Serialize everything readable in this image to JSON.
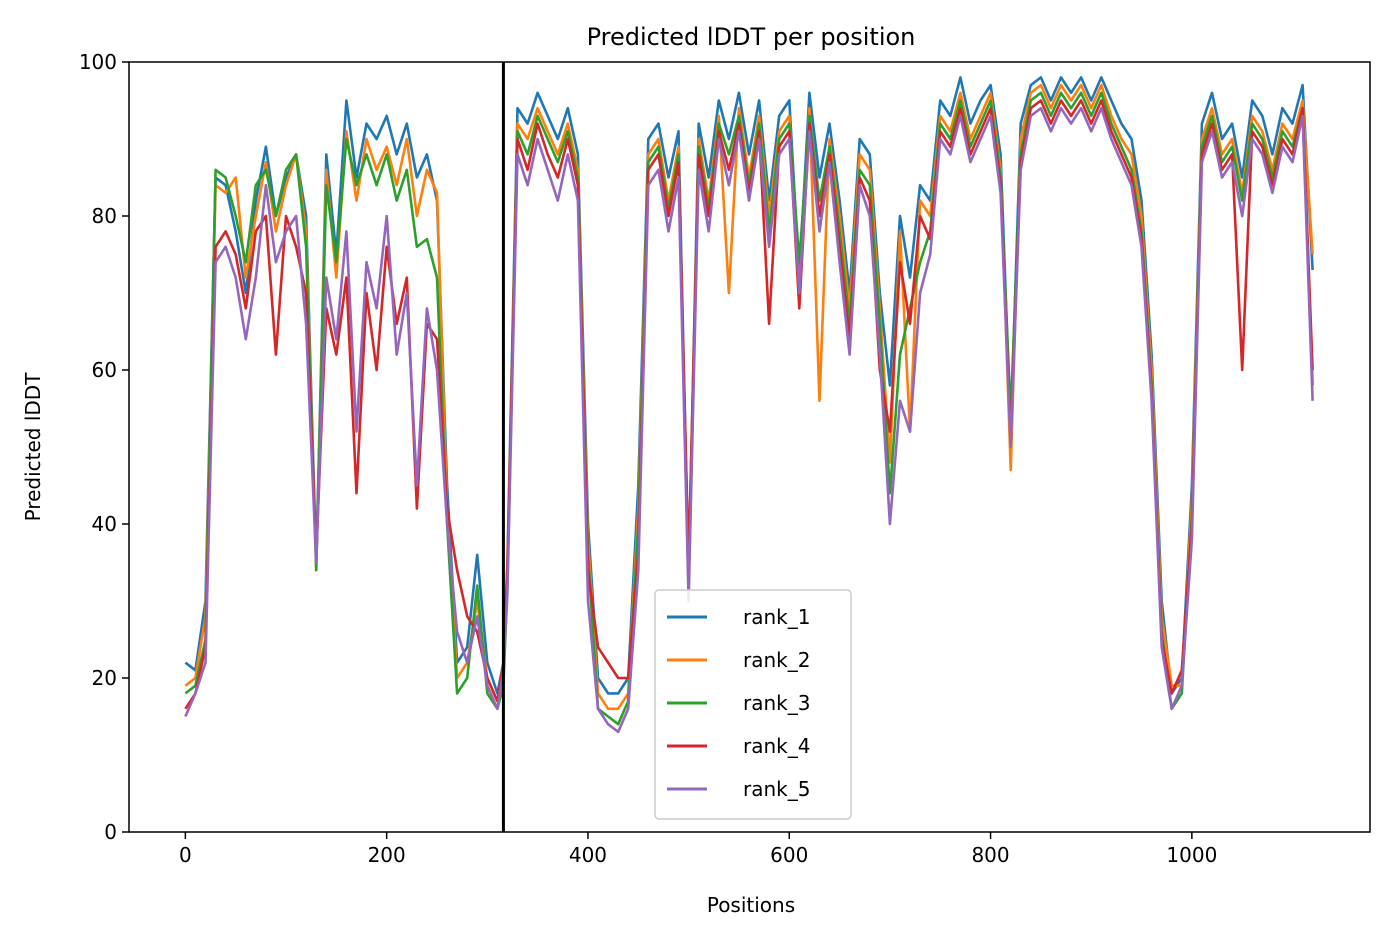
{
  "chart_data": {
    "type": "line",
    "title": "Predicted lDDT per position",
    "xlabel": "Positions",
    "ylabel": "Predicted lDDT",
    "xlim": [
      -56,
      1177
    ],
    "ylim": [
      0,
      100
    ],
    "xticks": [
      0,
      200,
      400,
      600,
      800,
      1000
    ],
    "yticks": [
      0,
      20,
      40,
      60,
      80,
      100
    ],
    "grid": false,
    "legend_position": "lower-center",
    "vertical_line_x": 316,
    "colors": [
      "#1f77b4",
      "#ff7f0e",
      "#2ca02c",
      "#d62728",
      "#9467bd"
    ],
    "series": [
      {
        "name": "rank_1",
        "x": [
          0,
          10,
          20,
          30,
          40,
          50,
          60,
          70,
          80,
          90,
          100,
          110,
          120,
          130,
          140,
          150,
          160,
          170,
          180,
          190,
          200,
          210,
          220,
          230,
          240,
          250,
          260,
          270,
          280,
          290,
          300,
          310,
          316,
          320,
          330,
          340,
          350,
          360,
          370,
          380,
          390,
          400,
          410,
          420,
          430,
          440,
          450,
          460,
          470,
          480,
          490,
          500,
          510,
          520,
          530,
          540,
          550,
          560,
          570,
          580,
          590,
          600,
          610,
          620,
          630,
          640,
          650,
          660,
          670,
          680,
          690,
          700,
          710,
          720,
          730,
          740,
          750,
          760,
          770,
          780,
          790,
          800,
          810,
          820,
          830,
          840,
          850,
          860,
          870,
          880,
          890,
          900,
          910,
          920,
          930,
          940,
          950,
          960,
          970,
          980,
          990,
          1000,
          1010,
          1020,
          1030,
          1040,
          1050,
          1060,
          1070,
          1080,
          1090,
          1100,
          1110,
          1120
        ],
        "values": [
          22,
          21,
          30,
          85,
          84,
          78,
          70,
          82,
          89,
          80,
          85,
          88,
          80,
          35,
          88,
          75,
          95,
          85,
          92,
          90,
          93,
          88,
          92,
          85,
          88,
          82,
          45,
          22,
          24,
          36,
          22,
          18,
          22,
          35,
          94,
          92,
          96,
          93,
          90,
          94,
          88,
          40,
          20,
          18,
          18,
          20,
          45,
          90,
          92,
          85,
          91,
          33,
          92,
          85,
          95,
          90,
          96,
          88,
          95,
          82,
          93,
          95,
          72,
          96,
          85,
          92,
          82,
          70,
          90,
          88,
          70,
          58,
          80,
          72,
          84,
          82,
          95,
          93,
          98,
          92,
          95,
          97,
          88,
          52,
          92,
          97,
          98,
          95,
          98,
          96,
          98,
          95,
          98,
          95,
          92,
          90,
          82,
          62,
          30,
          18,
          20,
          45,
          92,
          96,
          90,
          92,
          85,
          95,
          93,
          88,
          94,
          92,
          97,
          73
        ]
      },
      {
        "name": "rank_2",
        "x": [
          0,
          10,
          20,
          30,
          40,
          50,
          60,
          70,
          80,
          90,
          100,
          110,
          120,
          130,
          140,
          150,
          160,
          170,
          180,
          190,
          200,
          210,
          220,
          230,
          240,
          250,
          260,
          270,
          280,
          290,
          300,
          310,
          316,
          320,
          330,
          340,
          350,
          360,
          370,
          380,
          390,
          400,
          410,
          420,
          430,
          440,
          450,
          460,
          470,
          480,
          490,
          500,
          510,
          520,
          530,
          540,
          550,
          560,
          570,
          580,
          590,
          600,
          610,
          620,
          630,
          640,
          650,
          660,
          670,
          680,
          690,
          700,
          710,
          720,
          730,
          740,
          750,
          760,
          770,
          780,
          790,
          800,
          810,
          820,
          830,
          840,
          850,
          860,
          870,
          880,
          890,
          900,
          910,
          920,
          930,
          940,
          950,
          960,
          970,
          980,
          990,
          1000,
          1010,
          1020,
          1030,
          1040,
          1050,
          1060,
          1070,
          1080,
          1090,
          1100,
          1110,
          1120
        ],
        "values": [
          19,
          20,
          28,
          84,
          83,
          85,
          72,
          80,
          87,
          78,
          84,
          88,
          78,
          34,
          86,
          72,
          91,
          82,
          90,
          86,
          89,
          84,
          90,
          80,
          86,
          83,
          42,
          20,
          22,
          30,
          20,
          17,
          20,
          33,
          92,
          90,
          94,
          91,
          88,
          92,
          86,
          38,
          18,
          16,
          16,
          18,
          42,
          88,
          90,
          82,
          89,
          32,
          90,
          82,
          93,
          70,
          94,
          85,
          93,
          80,
          91,
          93,
          70,
          94,
          56,
          90,
          80,
          68,
          88,
          86,
          68,
          48,
          78,
          52,
          82,
          80,
          93,
          91,
          96,
          90,
          93,
          96,
          86,
          47,
          90,
          96,
          97,
          94,
          97,
          95,
          97,
          94,
          97,
          93,
          90,
          88,
          80,
          60,
          28,
          19,
          19,
          43,
          90,
          94,
          88,
          90,
          83,
          93,
          91,
          86,
          92,
          90,
          95,
          75
        ]
      },
      {
        "name": "rank_3",
        "x": [
          0,
          10,
          20,
          30,
          40,
          50,
          60,
          70,
          80,
          90,
          100,
          110,
          120,
          130,
          140,
          150,
          160,
          170,
          180,
          190,
          200,
          210,
          220,
          230,
          240,
          250,
          260,
          270,
          280,
          290,
          300,
          310,
          316,
          320,
          330,
          340,
          350,
          360,
          370,
          380,
          390,
          400,
          410,
          420,
          430,
          440,
          450,
          460,
          470,
          480,
          490,
          500,
          510,
          520,
          530,
          540,
          550,
          560,
          570,
          580,
          590,
          600,
          610,
          620,
          630,
          640,
          650,
          660,
          670,
          680,
          690,
          700,
          710,
          720,
          730,
          740,
          750,
          760,
          770,
          780,
          790,
          800,
          810,
          820,
          830,
          840,
          850,
          860,
          870,
          880,
          890,
          900,
          910,
          920,
          930,
          940,
          950,
          960,
          970,
          980,
          990,
          1000,
          1010,
          1020,
          1030,
          1040,
          1050,
          1060,
          1070,
          1080,
          1090,
          1100,
          1110,
          1120
        ],
        "values": [
          18,
          19,
          25,
          86,
          85,
          80,
          74,
          84,
          86,
          80,
          86,
          88,
          76,
          34,
          84,
          74,
          90,
          84,
          88,
          84,
          88,
          82,
          86,
          76,
          77,
          72,
          40,
          18,
          20,
          32,
          18,
          16,
          19,
          32,
          91,
          88,
          93,
          90,
          87,
          91,
          85,
          36,
          16,
          15,
          14,
          17,
          40,
          87,
          89,
          81,
          88,
          31,
          89,
          81,
          92,
          88,
          93,
          84,
          92,
          78,
          90,
          92,
          74,
          93,
          82,
          89,
          78,
          66,
          86,
          84,
          66,
          44,
          62,
          68,
          74,
          78,
          92,
          90,
          95,
          89,
          92,
          95,
          85,
          54,
          88,
          95,
          96,
          93,
          96,
          94,
          96,
          93,
          96,
          92,
          89,
          86,
          78,
          58,
          26,
          16,
          18,
          41,
          89,
          93,
          87,
          89,
          82,
          92,
          90,
          85,
          91,
          89,
          94,
          58
        ]
      },
      {
        "name": "rank_4",
        "x": [
          0,
          10,
          20,
          30,
          40,
          50,
          60,
          70,
          80,
          90,
          100,
          110,
          120,
          130,
          140,
          150,
          160,
          170,
          180,
          190,
          200,
          210,
          220,
          230,
          240,
          250,
          260,
          270,
          280,
          290,
          300,
          310,
          316,
          320,
          330,
          340,
          350,
          360,
          370,
          380,
          390,
          400,
          410,
          420,
          430,
          440,
          450,
          460,
          470,
          480,
          490,
          500,
          510,
          520,
          530,
          540,
          550,
          560,
          570,
          580,
          590,
          600,
          610,
          620,
          630,
          640,
          650,
          660,
          670,
          680,
          690,
          700,
          710,
          720,
          730,
          740,
          750,
          760,
          770,
          780,
          790,
          800,
          810,
          820,
          830,
          840,
          850,
          860,
          870,
          880,
          890,
          900,
          910,
          920,
          930,
          940,
          950,
          960,
          970,
          980,
          990,
          1000,
          1010,
          1020,
          1030,
          1040,
          1050,
          1060,
          1070,
          1080,
          1090,
          1100,
          1110,
          1120
        ],
        "values": [
          16,
          18,
          24,
          76,
          78,
          75,
          68,
          78,
          80,
          62,
          80,
          76,
          70,
          36,
          68,
          62,
          72,
          44,
          70,
          60,
          76,
          66,
          72,
          42,
          66,
          64,
          42,
          34,
          28,
          26,
          20,
          17,
          22,
          34,
          90,
          86,
          92,
          88,
          85,
          90,
          84,
          34,
          24,
          22,
          20,
          20,
          36,
          86,
          88,
          80,
          87,
          35,
          88,
          80,
          91,
          86,
          92,
          83,
          91,
          66,
          89,
          91,
          68,
          92,
          80,
          88,
          76,
          64,
          85,
          82,
          60,
          52,
          74,
          66,
          80,
          77,
          91,
          89,
          94,
          88,
          91,
          94,
          84,
          51,
          87,
          94,
          95,
          92,
          95,
          93,
          95,
          92,
          95,
          91,
          88,
          85,
          77,
          57,
          25,
          18,
          21,
          40,
          88,
          92,
          86,
          88,
          60,
          91,
          89,
          84,
          90,
          88,
          94,
          60
        ]
      },
      {
        "name": "rank_5",
        "x": [
          0,
          10,
          20,
          30,
          40,
          50,
          60,
          70,
          80,
          90,
          100,
          110,
          120,
          130,
          140,
          150,
          160,
          170,
          180,
          190,
          200,
          210,
          220,
          230,
          240,
          250,
          260,
          270,
          280,
          290,
          300,
          310,
          316,
          320,
          330,
          340,
          350,
          360,
          370,
          380,
          390,
          400,
          410,
          420,
          430,
          440,
          450,
          460,
          470,
          480,
          490,
          500,
          510,
          520,
          530,
          540,
          550,
          560,
          570,
          580,
          590,
          600,
          610,
          620,
          630,
          640,
          650,
          660,
          670,
          680,
          690,
          700,
          710,
          720,
          730,
          740,
          750,
          760,
          770,
          780,
          790,
          800,
          810,
          820,
          830,
          840,
          850,
          860,
          870,
          880,
          890,
          900,
          910,
          920,
          930,
          940,
          950,
          960,
          970,
          980,
          990,
          1000,
          1010,
          1020,
          1030,
          1040,
          1050,
          1060,
          1070,
          1080,
          1090,
          1100,
          1110,
          1120
        ],
        "values": [
          15,
          18,
          22,
          74,
          76,
          72,
          64,
          72,
          84,
          74,
          78,
          80,
          66,
          35,
          72,
          64,
          78,
          52,
          74,
          68,
          80,
          62,
          70,
          45,
          68,
          60,
          40,
          26,
          22,
          28,
          19,
          16,
          21,
          31,
          88,
          84,
          90,
          86,
          82,
          88,
          82,
          30,
          16,
          14,
          13,
          16,
          34,
          84,
          86,
          78,
          85,
          30,
          86,
          78,
          90,
          84,
          91,
          82,
          90,
          76,
          88,
          90,
          70,
          91,
          78,
          87,
          74,
          62,
          84,
          80,
          62,
          40,
          56,
          52,
          70,
          75,
          90,
          88,
          93,
          87,
          90,
          93,
          83,
          50,
          86,
          93,
          94,
          91,
          94,
          92,
          94,
          91,
          94,
          90,
          87,
          84,
          76,
          56,
          24,
          16,
          19,
          38,
          87,
          91,
          85,
          87,
          80,
          90,
          88,
          83,
          89,
          87,
          93,
          56
        ]
      }
    ]
  }
}
